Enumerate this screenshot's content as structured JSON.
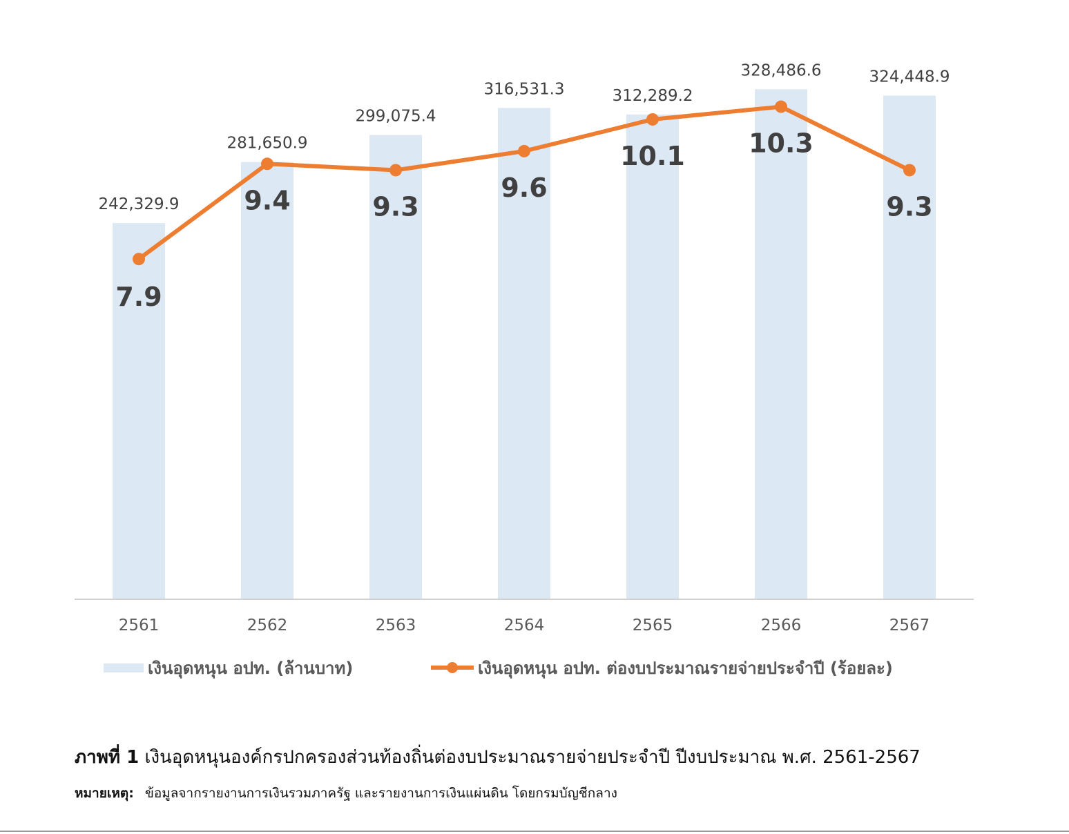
{
  "chart_data": {
    "type": "bar",
    "categories": [
      "2561",
      "2562",
      "2563",
      "2564",
      "2565",
      "2566",
      "2567"
    ],
    "series": [
      {
        "name": "เงินอุดหนุน อปท. (ล้านบาท)",
        "type": "bar",
        "values": [
          242329.9,
          281650.9,
          299075.4,
          316531.3,
          312289.2,
          328486.6,
          324448.9
        ],
        "labels": [
          "242,329.9",
          "281,650.9",
          "299,075.4",
          "316,531.3",
          "312,289.2",
          "328,486.6",
          "324,448.9"
        ],
        "color": "#dde8f5"
      },
      {
        "name": "เงินอุดหนุน อปท. ต่องบประมาณรายจ่ายประจำปี (ร้อยละ)",
        "type": "line",
        "values": [
          7.9,
          9.4,
          9.3,
          9.6,
          10.1,
          10.3,
          9.3
        ],
        "labels": [
          "7.9",
          "9.4",
          "9.3",
          "9.6",
          "10.1",
          "10.3",
          "9.3"
        ],
        "color": "#ed7d31"
      }
    ],
    "bar_ylim": [
      0,
      350000
    ],
    "line_ylim": [
      2.54,
      11.1
    ],
    "grid": false,
    "legend_position": "bottom"
  },
  "caption": {
    "label": "ภาพที่ 1",
    "text": "เงินอุดหนุนองค์กรปกครองส่วนท้องถิ่นต่องบประมาณรายจ่ายประจำปี ปีงบประมาณ พ.ศ. 2561-2567"
  },
  "note": {
    "label": "หมายเหตุ:",
    "text": "ข้อมูลจากรายงานการเงินรวมภาครัฐ และรายงานการเงินแผ่นดิน โดยกรมบัญชีกลาง"
  }
}
